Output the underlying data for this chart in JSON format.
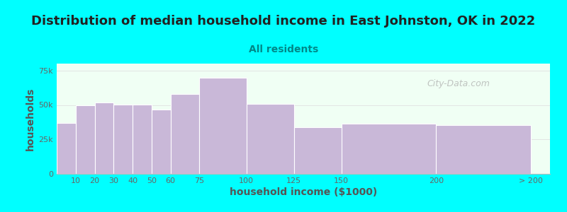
{
  "title": "Distribution of median household income in East Johnston, OK in 2022",
  "subtitle": "All residents",
  "xlabel": "household income ($1000)",
  "ylabel": "households",
  "background_color": "#00FFFF",
  "plot_bg_color": "#f0fff4",
  "bar_color": "#c9b8d8",
  "bar_edge_color": "#ffffff",
  "title_fontsize": 13,
  "title_color": "#222222",
  "subtitle_fontsize": 10,
  "subtitle_color": "#008888",
  "axis_label_fontsize": 10,
  "axis_label_color": "#555555",
  "tick_label_fontsize": 8,
  "tick_label_color": "#666666",
  "bar_lefts": [
    0,
    10,
    20,
    30,
    40,
    50,
    60,
    75,
    100,
    125,
    150,
    200
  ],
  "bar_widths": [
    10,
    10,
    10,
    10,
    10,
    10,
    15,
    25,
    25,
    25,
    50,
    50
  ],
  "bar_heights": [
    37000,
    49500,
    52000,
    50500,
    50500,
    46500,
    58000,
    70000,
    51000,
    34000,
    36500,
    35500
  ],
  "yticks": [
    0,
    25000,
    50000,
    75000
  ],
  "ytick_labels": [
    "0",
    "25k",
    "50k",
    "75k"
  ],
  "xtick_positions": [
    10,
    20,
    30,
    40,
    50,
    60,
    75,
    100,
    125,
    150,
    200,
    250
  ],
  "xtick_labels": [
    "10",
    "20",
    "30",
    "40",
    "50",
    "60",
    "75",
    "100",
    "125",
    "150",
    "200",
    "> 200"
  ],
  "xlim": [
    0,
    260
  ],
  "ylim": [
    0,
    80000
  ],
  "watermark": "City-Data.com",
  "watermark_color": "#aaaaaa",
  "grid_color": "#e0e0e0",
  "spine_color": "#bbbbbb"
}
